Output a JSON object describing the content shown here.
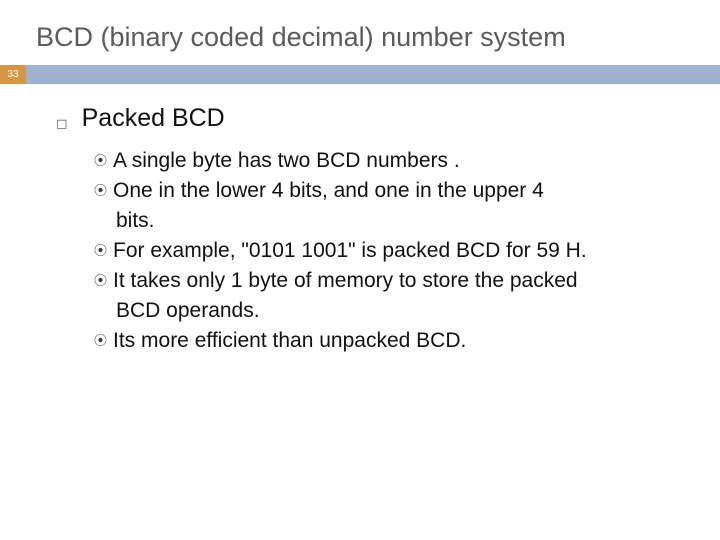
{
  "title": "BCD (binary coded decimal) number system",
  "pageNumber": "33",
  "colors": {
    "pageNumBg": "#d79646",
    "barBg": "#9fb2cf",
    "titleColor": "#5b5b5b",
    "textColor": "#111111"
  },
  "heading": "Packed BCD",
  "bullets": {
    "b0": "A single byte has two BCD numbers .",
    "b1a": "One in the lower 4 bits, and one in the upper 4",
    "b1b": "bits.",
    "b2": "For example, \"0101 1001\" is packed BCD for 59 H.",
    "b3a": "It takes only 1 byte of memory to store the packed",
    "b3b": "BCD operands.",
    "b4": "Its more efficient than unpacked BCD."
  }
}
